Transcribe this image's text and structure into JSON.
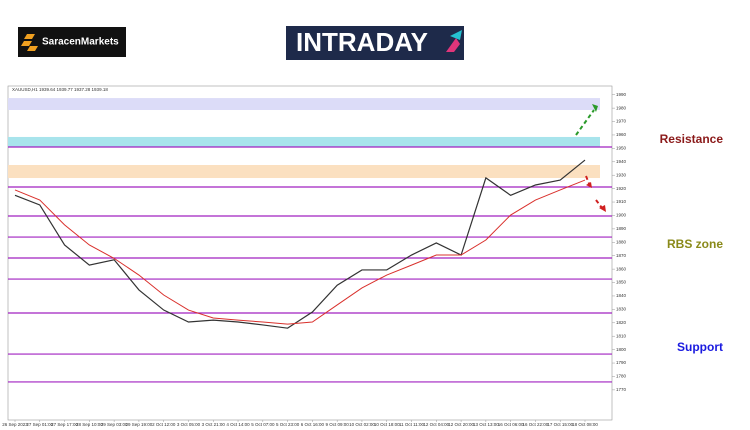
{
  "brand": "SaracenMarkets",
  "logo": "INTRADAY",
  "chart_data": {
    "type": "line",
    "subtitle": "XAUUSD,H1 1939.64 1939.77 1937.28 1939.18",
    "categories": [
      "26 Sep 2023",
      "27 Sep 01:00",
      "27 Sep 17:00",
      "28 Sep 10:00",
      "29 Sep 03:00",
      "29 Sep 19:00",
      "2 Oct 12:00",
      "3 Oct 05:00",
      "3 Oct 21:00",
      "4 Oct 14:00",
      "5 Oct 07:00",
      "5 Oct 23:00",
      "6 Oct 16:00",
      "9 Oct 09:00",
      "10 Oct 02:00",
      "10 Oct 18:00",
      "11 Oct 11:00",
      "12 Oct 04:00",
      "12 Oct 20:00",
      "13 Oct 13:00",
      "16 Oct 06:00",
      "16 Oct 22:00",
      "17 Oct 15:00",
      "18 Oct 08:00"
    ],
    "series": [
      {
        "color": "#333333",
        "values": [
          1915,
          1907.8,
          1878,
          1863,
          1867,
          1844.5,
          1829.5,
          1820.6,
          1822,
          1820.6,
          1818.4,
          1816,
          1828,
          1848,
          1859.4,
          1859.4,
          1870.5,
          1879.5,
          1870.5,
          1928,
          1915,
          1922.7,
          1926.4,
          1941.3
        ]
      },
      {
        "color": "#d9302c",
        "values": [
          1919,
          1911.5,
          1893,
          1878,
          1868,
          1855.6,
          1840.7,
          1829.5,
          1823.6,
          1822,
          1820.6,
          1819,
          1820.6,
          1833.3,
          1846,
          1855.6,
          1863,
          1870.5,
          1870.5,
          1881.7,
          1900.3,
          1911.5,
          1919,
          1926.4
        ]
      }
    ],
    "ylim": [
      1755,
      1995
    ],
    "yticks": [
      1770,
      1780,
      1790,
      1800,
      1810,
      1820,
      1830,
      1840,
      1850,
      1860,
      1870,
      1880,
      1890,
      1900,
      1910,
      1920,
      1930,
      1940,
      1950,
      1960,
      1970,
      1980,
      1990
    ],
    "levels": [
      1951,
      1921.2,
      1899.6,
      1883.9,
      1868.3,
      1852.6,
      1827.3,
      1796.7,
      1775.9
    ],
    "level_color": "#a020c0",
    "zones": [
      {
        "from": 1978.6,
        "to": 1987.5,
        "color": "#dcdcf8"
      },
      {
        "from": 1951,
        "to": 1958.5,
        "color": "#a8e4ec"
      },
      {
        "from": 1927.9,
        "to": 1937.6,
        "color": "#fbe0c0"
      }
    ],
    "annotations": [
      {
        "text": "Resistance",
        "color": "#8b1a1a"
      },
      {
        "text": "RBS zone",
        "color": "#8a8a1a"
      },
      {
        "text": "Support",
        "color": "#1a1ae0"
      }
    ]
  }
}
